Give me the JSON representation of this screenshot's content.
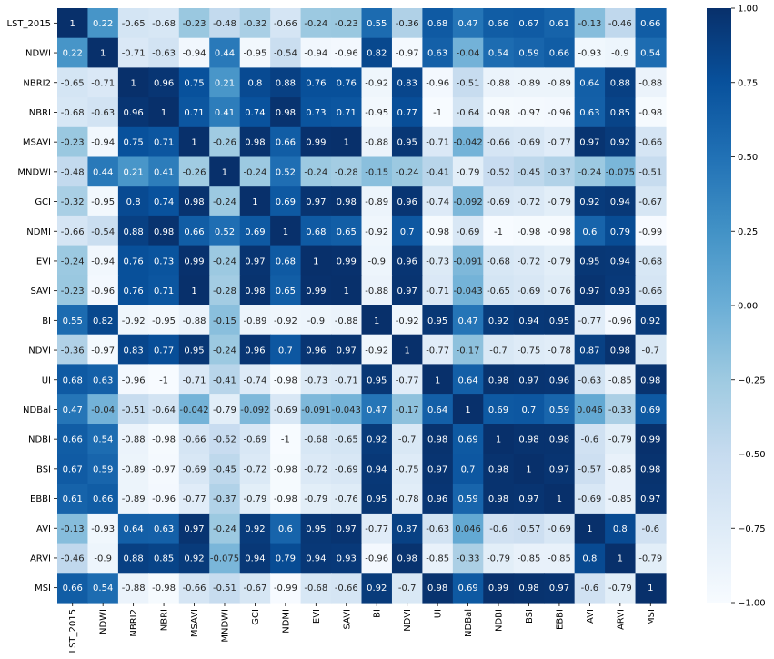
{
  "chart_data": {
    "type": "heatmap",
    "title": "",
    "xlabel": "",
    "ylabel": "",
    "labels": [
      "LST_2015",
      "NDWI",
      "NBRI2",
      "NBRI",
      "MSAVI",
      "MNDWI",
      "GCI",
      "NDMI",
      "EVI",
      "SAVI",
      "BI",
      "NDVI",
      "UI",
      "NDBal",
      "NDBI",
      "BSI",
      "EBBI",
      "AVI",
      "ARVI",
      "MSI"
    ],
    "values": [
      [
        "1",
        "0.22",
        "-0.65",
        "-0.68",
        "-0.23",
        "-0.48",
        "-0.32",
        "-0.66",
        "-0.24",
        "-0.23",
        "0.55",
        "-0.36",
        "0.68",
        "0.47",
        "0.66",
        "0.67",
        "0.61",
        "-0.13",
        "-0.46",
        "0.66"
      ],
      [
        "0.22",
        "1",
        "-0.71",
        "-0.63",
        "-0.94",
        "0.44",
        "-0.95",
        "-0.54",
        "-0.94",
        "-0.96",
        "0.82",
        "-0.97",
        "0.63",
        "-0.04",
        "0.54",
        "0.59",
        "0.66",
        "-0.93",
        "-0.9",
        "0.54"
      ],
      [
        "-0.65",
        "-0.71",
        "1",
        "0.96",
        "0.75",
        "0.21",
        "0.8",
        "0.88",
        "0.76",
        "0.76",
        "-0.92",
        "0.83",
        "-0.96",
        "-0.51",
        "-0.88",
        "-0.89",
        "-0.89",
        "0.64",
        "0.88",
        "-0.88"
      ],
      [
        "-0.68",
        "-0.63",
        "0.96",
        "1",
        "0.71",
        "0.41",
        "0.74",
        "0.98",
        "0.73",
        "0.71",
        "-0.95",
        "0.77",
        "-1",
        "-0.64",
        "-0.98",
        "-0.97",
        "-0.96",
        "0.63",
        "0.85",
        "-0.98"
      ],
      [
        "-0.23",
        "-0.94",
        "0.75",
        "0.71",
        "1",
        "-0.26",
        "0.98",
        "0.66",
        "0.99",
        "1",
        "-0.88",
        "0.95",
        "-0.71",
        "-0.042",
        "-0.66",
        "-0.69",
        "-0.77",
        "0.97",
        "0.92",
        "-0.66"
      ],
      [
        "-0.48",
        "0.44",
        "0.21",
        "0.41",
        "-0.26",
        "1",
        "-0.24",
        "0.52",
        "-0.24",
        "-0.28",
        "-0.15",
        "-0.24",
        "-0.41",
        "-0.79",
        "-0.52",
        "-0.45",
        "-0.37",
        "-0.24",
        "-0.075",
        "-0.51"
      ],
      [
        "-0.32",
        "-0.95",
        "0.8",
        "0.74",
        "0.98",
        "-0.24",
        "1",
        "0.69",
        "0.97",
        "0.98",
        "-0.89",
        "0.96",
        "-0.74",
        "-0.092",
        "-0.69",
        "-0.72",
        "-0.79",
        "0.92",
        "0.94",
        "-0.67"
      ],
      [
        "-0.66",
        "-0.54",
        "0.88",
        "0.98",
        "0.66",
        "0.52",
        "0.69",
        "1",
        "0.68",
        "0.65",
        "-0.92",
        "0.7",
        "-0.98",
        "-0.69",
        "-1",
        "-0.98",
        "-0.98",
        "0.6",
        "0.79",
        "-0.99"
      ],
      [
        "-0.24",
        "-0.94",
        "0.76",
        "0.73",
        "0.99",
        "-0.24",
        "0.97",
        "0.68",
        "1",
        "0.99",
        "-0.9",
        "0.96",
        "-0.73",
        "-0.091",
        "-0.68",
        "-0.72",
        "-0.79",
        "0.95",
        "0.94",
        "-0.68"
      ],
      [
        "-0.23",
        "-0.96",
        "0.76",
        "0.71",
        "1",
        "-0.28",
        "0.98",
        "0.65",
        "0.99",
        "1",
        "-0.88",
        "0.97",
        "-0.71",
        "-0.043",
        "-0.65",
        "-0.69",
        "-0.76",
        "0.97",
        "0.93",
        "-0.66"
      ],
      [
        "0.55",
        "0.82",
        "-0.92",
        "-0.95",
        "-0.88",
        "-0.15",
        "-0.89",
        "-0.92",
        "-0.9",
        "-0.88",
        "1",
        "-0.92",
        "0.95",
        "0.47",
        "0.92",
        "0.94",
        "0.95",
        "-0.77",
        "-0.96",
        "0.92"
      ],
      [
        "-0.36",
        "-0.97",
        "0.83",
        "0.77",
        "0.95",
        "-0.24",
        "0.96",
        "0.7",
        "0.96",
        "0.97",
        "-0.92",
        "1",
        "-0.77",
        "-0.17",
        "-0.7",
        "-0.75",
        "-0.78",
        "0.87",
        "0.98",
        "-0.7"
      ],
      [
        "0.68",
        "0.63",
        "-0.96",
        "-1",
        "-0.71",
        "-0.41",
        "-0.74",
        "-0.98",
        "-0.73",
        "-0.71",
        "0.95",
        "-0.77",
        "1",
        "0.64",
        "0.98",
        "0.97",
        "0.96",
        "-0.63",
        "-0.85",
        "0.98"
      ],
      [
        "0.47",
        "-0.04",
        "-0.51",
        "-0.64",
        "-0.042",
        "-0.79",
        "-0.092",
        "-0.69",
        "-0.091",
        "-0.043",
        "0.47",
        "-0.17",
        "0.64",
        "1",
        "0.69",
        "0.7",
        "0.59",
        "0.046",
        "-0.33",
        "0.69"
      ],
      [
        "0.66",
        "0.54",
        "-0.88",
        "-0.98",
        "-0.66",
        "-0.52",
        "-0.69",
        "-1",
        "-0.68",
        "-0.65",
        "0.92",
        "-0.7",
        "0.98",
        "0.69",
        "1",
        "0.98",
        "0.98",
        "-0.6",
        "-0.79",
        "0.99"
      ],
      [
        "0.67",
        "0.59",
        "-0.89",
        "-0.97",
        "-0.69",
        "-0.45",
        "-0.72",
        "-0.98",
        "-0.72",
        "-0.69",
        "0.94",
        "-0.75",
        "0.97",
        "0.7",
        "0.98",
        "1",
        "0.97",
        "-0.57",
        "-0.85",
        "0.98"
      ],
      [
        "0.61",
        "0.66",
        "-0.89",
        "-0.96",
        "-0.77",
        "-0.37",
        "-0.79",
        "-0.98",
        "-0.79",
        "-0.76",
        "0.95",
        "-0.78",
        "0.96",
        "0.59",
        "0.98",
        "0.97",
        "1",
        "-0.69",
        "-0.85",
        "0.97"
      ],
      [
        "-0.13",
        "-0.93",
        "0.64",
        "0.63",
        "0.97",
        "-0.24",
        "0.92",
        "0.6",
        "0.95",
        "0.97",
        "-0.77",
        "0.87",
        "-0.63",
        "0.046",
        "-0.6",
        "-0.57",
        "-0.69",
        "1",
        "0.8",
        "-0.6"
      ],
      [
        "-0.46",
        "-0.9",
        "0.88",
        "0.85",
        "0.92",
        "-0.075",
        "0.94",
        "0.79",
        "0.94",
        "0.93",
        "-0.96",
        "0.98",
        "-0.85",
        "-0.33",
        "-0.79",
        "-0.85",
        "-0.85",
        "0.8",
        "1",
        "-0.79"
      ],
      [
        "0.66",
        "0.54",
        "-0.88",
        "-0.98",
        "-0.66",
        "-0.51",
        "-0.67",
        "-0.99",
        "-0.68",
        "-0.66",
        "0.92",
        "-0.7",
        "0.98",
        "0.69",
        "0.99",
        "0.98",
        "0.97",
        "-0.6",
        "-0.79",
        "1"
      ]
    ],
    "colormap": "Blues",
    "vmin": -1,
    "vmax": 1,
    "colorbar": {
      "ticks": [
        "1.00",
        "0.75",
        "0.50",
        "0.25",
        "0.00",
        "−0.25",
        "−0.50",
        "−0.75",
        "−1.00"
      ],
      "placement": "right"
    }
  }
}
